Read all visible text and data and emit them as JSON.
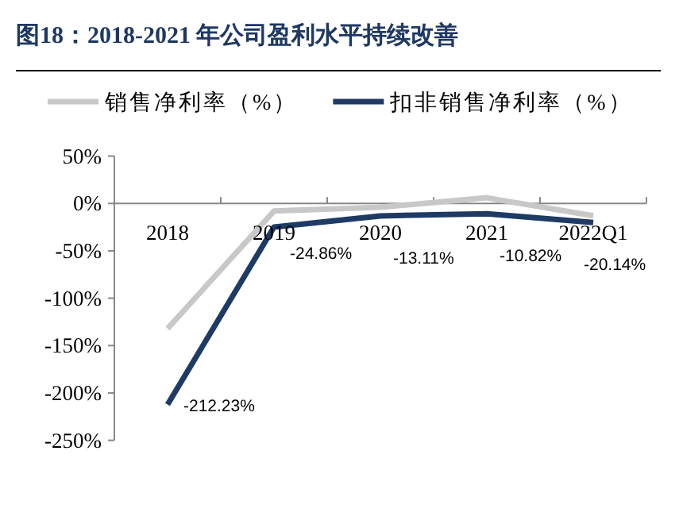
{
  "chart_data": {
    "type": "line",
    "title": "图18：2018-2021 年公司盈利水平持续改善",
    "categories": [
      "2018",
      "2019",
      "2020",
      "2021",
      "2022Q1"
    ],
    "series": [
      {
        "name": "销售净利率（%）",
        "color": "#c8c8c8",
        "values": [
          -132,
          -8,
          -4,
          6,
          -13
        ]
      },
      {
        "name": "扣非销售净利率（%）",
        "color": "#1f3b63",
        "values": [
          -212.23,
          -24.86,
          -13.11,
          -10.82,
          -20.14
        ],
        "value_labels": [
          "-212.23%",
          "-24.86%",
          "-13.11%",
          "-10.82%",
          "-20.14%"
        ]
      }
    ],
    "ylim": [
      -250,
      50
    ],
    "yticks": [
      {
        "value": 50,
        "label": "50%"
      },
      {
        "value": 0,
        "label": "0%"
      },
      {
        "value": -50,
        "label": "-50%"
      },
      {
        "value": -100,
        "label": "-100%"
      },
      {
        "value": -150,
        "label": "-150%"
      },
      {
        "value": -200,
        "label": "-200%"
      },
      {
        "value": -250,
        "label": "-250%"
      }
    ],
    "legend": "top",
    "line_style": "solid"
  }
}
